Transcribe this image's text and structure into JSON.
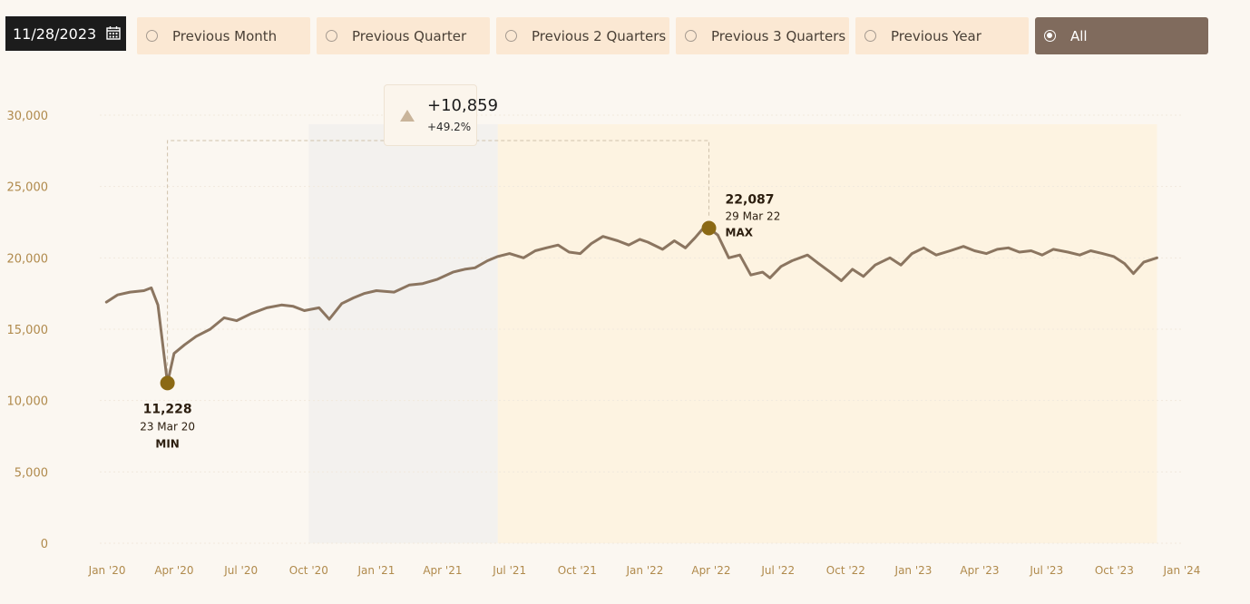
{
  "date_picker": {
    "value": "11/28/2023",
    "icon": "calendar-icon"
  },
  "filters": [
    {
      "label": "Previous Month",
      "selected": false
    },
    {
      "label": "Previous Quarter",
      "selected": false
    },
    {
      "label": "Previous 2 Quarters",
      "selected": false
    },
    {
      "label": "Previous 3 Quarters",
      "selected": false
    },
    {
      "label": "Previous Year",
      "selected": false
    },
    {
      "label": "All",
      "selected": true
    }
  ],
  "colors": {
    "line": "#8b7560",
    "marker": "#8b6914",
    "filter_bg": "#fbe8d3",
    "filter_active": "#806b5d",
    "axis_text": "#b08a4c",
    "band_1": "#f3f1ee",
    "band_2": "#fdf3e1"
  },
  "callout": {
    "delta": "+10,859",
    "pct": "+49.2%",
    "icon": "up-triangle-icon"
  },
  "annotations": {
    "min": {
      "value": "11,228",
      "date": "23 Mar 20",
      "tag": "MIN"
    },
    "max": {
      "value": "22,087",
      "date": "29 Mar 22",
      "tag": "MAX"
    }
  },
  "chart_data": {
    "type": "line",
    "title": "",
    "xlabel": "",
    "ylabel": "",
    "ylim": [
      0,
      30000
    ],
    "xlim": [
      "2019-12-22",
      "2024-01-01"
    ],
    "y_ticks": [
      "0",
      "5,000",
      "10,000",
      "15,000",
      "20,000",
      "25,000",
      "30,000"
    ],
    "y_tick_values": [
      0,
      5000,
      10000,
      15000,
      20000,
      25000,
      30000
    ],
    "x_ticks": [
      "Jan '20",
      "Apr '20",
      "Jul '20",
      "Oct '20",
      "Jan '21",
      "Apr '21",
      "Jul '21",
      "Oct '21",
      "Jan '22",
      "Apr '22",
      "Jul '22",
      "Oct '22",
      "Jan '23",
      "Apr '23",
      "Jul '23",
      "Oct '23",
      "Jan '24"
    ],
    "x_tick_dates": [
      "2020-01-01",
      "2020-04-01",
      "2020-07-01",
      "2020-10-01",
      "2021-01-01",
      "2021-04-01",
      "2021-07-01",
      "2021-10-01",
      "2022-01-01",
      "2022-04-01",
      "2022-07-01",
      "2022-10-01",
      "2023-01-01",
      "2023-04-01",
      "2023-07-01",
      "2023-10-01",
      "2024-01-01"
    ],
    "grid": true,
    "shaded_ranges": [
      {
        "start": "2020-10-01",
        "end": "2021-06-15"
      },
      {
        "start": "2021-06-15",
        "end": "2023-11-28"
      }
    ],
    "series": [
      {
        "x": [
          "2019-12-31",
          "2020-01-15",
          "2020-02-01",
          "2020-02-20",
          "2020-03-01",
          "2020-03-10",
          "2020-03-16",
          "2020-03-23",
          "2020-04-01",
          "2020-04-15",
          "2020-05-01",
          "2020-05-20",
          "2020-06-08",
          "2020-06-25",
          "2020-07-15",
          "2020-08-05",
          "2020-08-25",
          "2020-09-10",
          "2020-09-25",
          "2020-10-15",
          "2020-10-29",
          "2020-11-15",
          "2020-12-01",
          "2020-12-15",
          "2021-01-01",
          "2021-01-25",
          "2021-02-15",
          "2021-03-05",
          "2021-03-25",
          "2021-04-15",
          "2021-05-01",
          "2021-05-15",
          "2021-06-01",
          "2021-06-15",
          "2021-07-01",
          "2021-07-20",
          "2021-08-05",
          "2021-08-20",
          "2021-09-05",
          "2021-09-20",
          "2021-10-05",
          "2021-10-20",
          "2021-11-05",
          "2021-11-25",
          "2021-12-10",
          "2021-12-25",
          "2022-01-05",
          "2022-01-25",
          "2022-02-10",
          "2022-02-25",
          "2022-03-10",
          "2022-03-20",
          "2022-03-29",
          "2022-04-10",
          "2022-04-25",
          "2022-05-10",
          "2022-05-25",
          "2022-06-10",
          "2022-06-20",
          "2022-07-05",
          "2022-07-20",
          "2022-08-10",
          "2022-08-25",
          "2022-09-10",
          "2022-09-25",
          "2022-10-10",
          "2022-10-25",
          "2022-11-10",
          "2022-11-30",
          "2022-12-15",
          "2022-12-30",
          "2023-01-15",
          "2023-02-01",
          "2023-02-20",
          "2023-03-10",
          "2023-03-25",
          "2023-04-10",
          "2023-04-25",
          "2023-05-10",
          "2023-05-25",
          "2023-06-10",
          "2023-06-25",
          "2023-07-10",
          "2023-07-30",
          "2023-08-15",
          "2023-08-30",
          "2023-09-15",
          "2023-09-30",
          "2023-10-15",
          "2023-10-27",
          "2023-11-10",
          "2023-11-28"
        ],
        "values": [
          16900,
          17400,
          17600,
          17700,
          17900,
          16700,
          14200,
          11228,
          13300,
          13900,
          14500,
          15000,
          15800,
          15600,
          16100,
          16500,
          16700,
          16600,
          16300,
          16500,
          15700,
          16800,
          17200,
          17500,
          17700,
          17600,
          18100,
          18200,
          18500,
          19000,
          19200,
          19300,
          19800,
          20100,
          20300,
          20000,
          20500,
          20700,
          20900,
          20400,
          20300,
          21000,
          21500,
          21200,
          20900,
          21300,
          21100,
          20600,
          21200,
          20700,
          21400,
          22000,
          22087,
          21600,
          20000,
          20200,
          18800,
          19000,
          18600,
          19400,
          19800,
          20200,
          19600,
          19000,
          18400,
          19200,
          18700,
          19500,
          20000,
          19500,
          20300,
          20700,
          20200,
          20500,
          20800,
          20500,
          20300,
          20600,
          20700,
          20400,
          20500,
          20200,
          20600,
          20400,
          20200,
          20500,
          20300,
          20100,
          19600,
          18900,
          19700,
          20000
        ]
      }
    ]
  }
}
